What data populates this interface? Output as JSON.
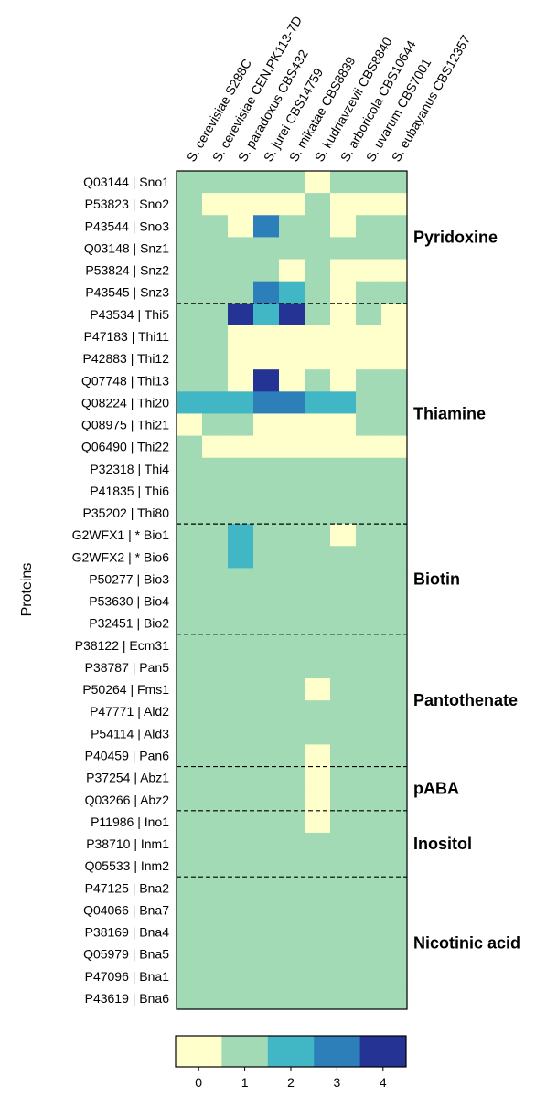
{
  "chart_data": {
    "type": "heatmap",
    "ylabel": "Proteins",
    "columns": [
      "S. cerevisiae S288C",
      "S. cerevisiae CEN.PK113-7D",
      "S. paradoxus CBS432",
      "S. jurei CBS14759",
      "S. mikatae CBS8839",
      "S. kudriavzevii CBS8840",
      "S. arboricola CBS10644",
      "S. uvarum CBS7001",
      "S. eubayanus CBS12357"
    ],
    "rows": [
      "Q03144 | Sno1",
      "P53823 | Sno2",
      "P43544 | Sno3",
      "Q03148 | Snz1",
      "P53824 | Snz2",
      "P43545 | Snz3",
      "P43534 | Thi5",
      "P47183 | Thi11",
      "P42883 | Thi12",
      "Q07748 | Thi13",
      "Q08224 | Thi20",
      "Q08975 | Thi21",
      "Q06490 | Thi22",
      "P32318 | Thi4",
      "P41835 | Thi6",
      "P35202 | Thi80",
      "G2WFX1 | * Bio1",
      "G2WFX2 | * Bio6",
      "P50277 | Bio3",
      "P53630 | Bio4",
      "P32451 | Bio2",
      "P38122 | Ecm31",
      "P38787 | Pan5",
      "P50264 | Fms1",
      "P47771 | Ald2",
      "P54114 | Ald3",
      "P40459 | Pan6",
      "P37254 | Abz1",
      "Q03266 | Abz2",
      "P11986 | Ino1",
      "P38710 | Inm1",
      "Q05533 | Inm2",
      "P47125 | Bna2",
      "Q04066 | Bna7",
      "P38169 | Bna4",
      "Q05979 | Bna5",
      "P47096 | Bna1",
      "P43619 | Bna6"
    ],
    "values": [
      [
        1,
        1,
        1,
        1,
        1,
        0,
        1,
        1,
        1
      ],
      [
        1,
        0,
        0,
        0,
        0,
        1,
        0,
        0,
        0
      ],
      [
        1,
        1,
        0,
        3,
        1,
        1,
        0,
        1,
        1
      ],
      [
        1,
        1,
        1,
        1,
        1,
        1,
        1,
        1,
        1
      ],
      [
        1,
        1,
        1,
        1,
        0,
        1,
        0,
        0,
        0
      ],
      [
        1,
        1,
        1,
        3,
        2,
        1,
        0,
        1,
        1
      ],
      [
        1,
        1,
        4,
        2,
        4,
        1,
        0,
        1,
        0
      ],
      [
        1,
        1,
        0,
        0,
        0,
        0,
        0,
        0,
        0
      ],
      [
        1,
        1,
        0,
        0,
        0,
        0,
        0,
        0,
        0
      ],
      [
        1,
        1,
        0,
        4,
        0,
        1,
        0,
        1,
        1
      ],
      [
        2,
        2,
        2,
        3,
        3,
        2,
        2,
        1,
        1
      ],
      [
        0,
        1,
        1,
        0,
        0,
        0,
        0,
        1,
        1
      ],
      [
        1,
        0,
        0,
        0,
        0,
        0,
        0,
        0,
        0
      ],
      [
        1,
        1,
        1,
        1,
        1,
        1,
        1,
        1,
        1
      ],
      [
        1,
        1,
        1,
        1,
        1,
        1,
        1,
        1,
        1
      ],
      [
        1,
        1,
        1,
        1,
        1,
        1,
        1,
        1,
        1
      ],
      [
        1,
        1,
        2,
        1,
        1,
        1,
        0,
        1,
        1
      ],
      [
        1,
        1,
        2,
        1,
        1,
        1,
        1,
        1,
        1
      ],
      [
        1,
        1,
        1,
        1,
        1,
        1,
        1,
        1,
        1
      ],
      [
        1,
        1,
        1,
        1,
        1,
        1,
        1,
        1,
        1
      ],
      [
        1,
        1,
        1,
        1,
        1,
        1,
        1,
        1,
        1
      ],
      [
        1,
        1,
        1,
        1,
        1,
        1,
        1,
        1,
        1
      ],
      [
        1,
        1,
        1,
        1,
        1,
        1,
        1,
        1,
        1
      ],
      [
        1,
        1,
        1,
        1,
        1,
        0,
        1,
        1,
        1
      ],
      [
        1,
        1,
        1,
        1,
        1,
        1,
        1,
        1,
        1
      ],
      [
        1,
        1,
        1,
        1,
        1,
        1,
        1,
        1,
        1
      ],
      [
        1,
        1,
        1,
        1,
        1,
        0,
        1,
        1,
        1
      ],
      [
        1,
        1,
        1,
        1,
        1,
        0,
        1,
        1,
        1
      ],
      [
        1,
        1,
        1,
        1,
        1,
        0,
        1,
        1,
        1
      ],
      [
        1,
        1,
        1,
        1,
        1,
        0,
        1,
        1,
        1
      ],
      [
        1,
        1,
        1,
        1,
        1,
        1,
        1,
        1,
        1
      ],
      [
        1,
        1,
        1,
        1,
        1,
        1,
        1,
        1,
        1
      ],
      [
        1,
        1,
        1,
        1,
        1,
        1,
        1,
        1,
        1
      ],
      [
        1,
        1,
        1,
        1,
        1,
        1,
        1,
        1,
        1
      ],
      [
        1,
        1,
        1,
        1,
        1,
        1,
        1,
        1,
        1
      ],
      [
        1,
        1,
        1,
        1,
        1,
        1,
        1,
        1,
        1
      ],
      [
        1,
        1,
        1,
        1,
        1,
        1,
        1,
        1,
        1
      ],
      [
        1,
        1,
        1,
        1,
        1,
        1,
        1,
        1,
        1
      ]
    ],
    "groups": [
      {
        "name": "Pyridoxine",
        "start": 0,
        "end": 5
      },
      {
        "name": "Thiamine",
        "start": 6,
        "end": 15
      },
      {
        "name": "Biotin",
        "start": 16,
        "end": 20
      },
      {
        "name": "Pantothenate",
        "start": 21,
        "end": 26
      },
      {
        "name": "pABA",
        "start": 27,
        "end": 28
      },
      {
        "name": "Inositol",
        "start": 29,
        "end": 31
      },
      {
        "name": "Nicotinic acid",
        "start": 32,
        "end": 37
      }
    ],
    "color_scale": {
      "values": [
        0,
        1,
        2,
        3,
        4
      ],
      "colors": [
        "#ffffcc",
        "#a1dab4",
        "#41b6c4",
        "#2c7fb8",
        "#253494"
      ],
      "ticks": [
        "0",
        "1",
        "2",
        "3",
        "4"
      ]
    }
  }
}
